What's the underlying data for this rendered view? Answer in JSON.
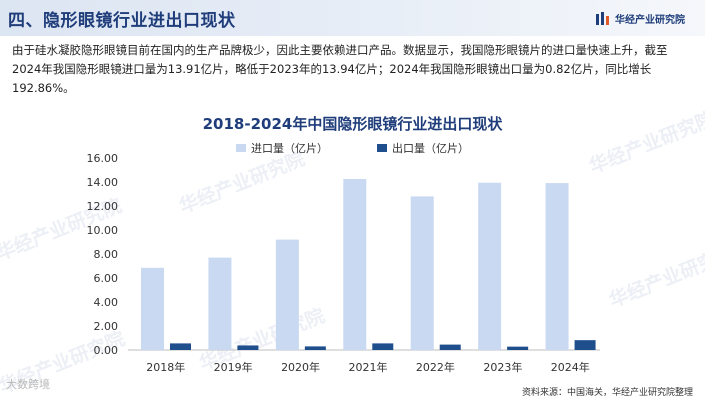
{
  "header": {
    "section_title": "四、隐形眼镜行业进出口现状",
    "brand_name": "华经产业研究院"
  },
  "description": "由于硅水凝胶隐形眼镜目前在国内的生产品牌极少，因此主要依赖进口产品。数据显示，我国隐形眼镜片的进口量快速上升，截至2024年我国隐形眼镜进口量为13.91亿片，略低于2023年的13.94亿片；2024年我国隐形眼镜出口量为0.82亿片，同比增长192.86%。",
  "watermark_text": "华经产业研究院",
  "footer": {
    "source": "资料来源：中国海关，华经产业研究院整理",
    "overlay_logo": "大数跨境"
  },
  "colors": {
    "import": "#c9d9f1",
    "export": "#1f4e8c",
    "title": "#1f3d7a"
  },
  "chart_data": {
    "type": "bar",
    "title": "2018-2024年中国隐形眼镜行业进出口现状",
    "categories": [
      "2018年",
      "2019年",
      "2020年",
      "2021年",
      "2022年",
      "2023年",
      "2024年"
    ],
    "series": [
      {
        "name": "进口量（亿片）",
        "values": [
          6.85,
          7.7,
          9.2,
          14.25,
          12.8,
          13.94,
          13.91
        ]
      },
      {
        "name": "出口量（亿片）",
        "values": [
          0.55,
          0.38,
          0.3,
          0.55,
          0.45,
          0.28,
          0.82
        ]
      }
    ],
    "ylim": [
      0,
      16
    ],
    "yticks": [
      "0.00",
      "2.00",
      "4.00",
      "6.00",
      "8.00",
      "10.00",
      "12.00",
      "14.00",
      "16.00"
    ],
    "legend_position": "top-center",
    "grid": false
  }
}
